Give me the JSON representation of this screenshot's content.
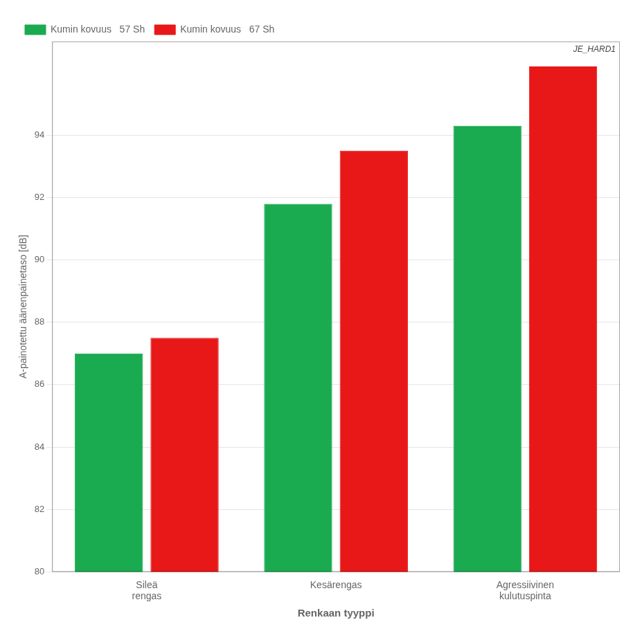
{
  "chart_data": {
    "type": "bar",
    "categories": [
      "Sileä\nrengas",
      "Kesärengas",
      "Agressiivinen\nkulutuspinta"
    ],
    "series": [
      {
        "name": "Kumin kovuus   57 Sh",
        "color": "#1aaa50",
        "values": [
          87.0,
          91.8,
          94.3
        ]
      },
      {
        "name": "Kumin kovuus   67 Sh",
        "color": "#e81818",
        "values": [
          87.5,
          93.5,
          96.2
        ]
      }
    ],
    "xlabel": "Renkaan tyyppi",
    "ylabel": "A-painotettu äänenpainetaso [dB]",
    "ylim": [
      80,
      97
    ],
    "yticks": [
      80,
      82,
      84,
      86,
      88,
      90,
      92,
      94
    ],
    "grid": true,
    "legend": "upper left",
    "annotations": [
      "JE_HARD1"
    ]
  }
}
